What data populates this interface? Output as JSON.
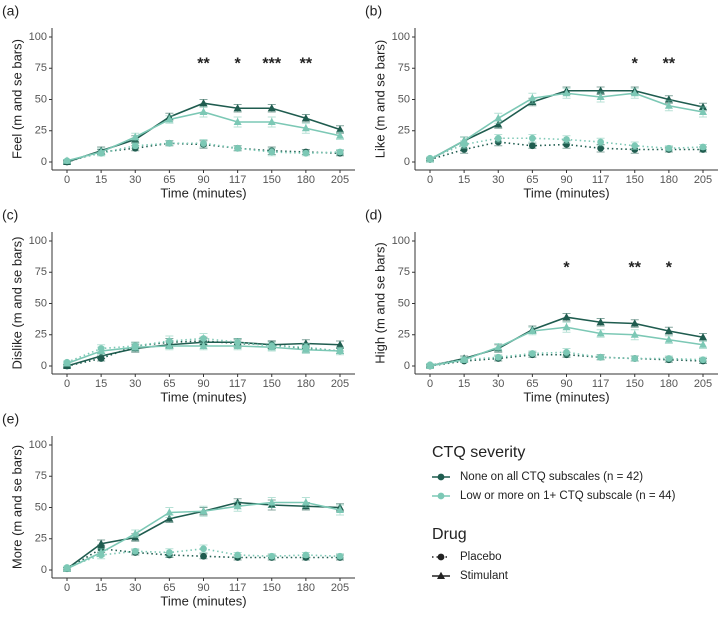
{
  "chart_data": [
    {
      "type": "line",
      "panel": "(a)",
      "ylabel": "Feel (m and se bars)",
      "xlabel": "Time (minutes)",
      "categories": [
        0,
        15,
        30,
        65,
        90,
        117,
        150,
        180,
        205
      ],
      "ylim": [
        0,
        100
      ],
      "yticks": [
        0,
        25,
        50,
        75,
        100
      ],
      "significance": [
        null,
        null,
        null,
        null,
        "**",
        "*",
        "***",
        "**",
        null
      ],
      "series": [
        [
          {
            "values": [
              0,
              8,
              11,
              15,
              14,
              11,
              9,
              8,
              7
            ],
            "errors": [
              1,
              2,
              2,
              2,
              3,
              2,
              3,
              2,
              2
            ]
          },
          {
            "values": [
              0,
              9,
              18,
              36,
              47,
              43,
              43,
              35,
              26
            ],
            "errors": [
              1,
              3,
              3,
              3,
              3,
              3,
              3,
              3,
              3
            ]
          }
        ],
        [
          {
            "values": [
              1,
              7,
              13,
              15,
              15,
              11,
              8,
              7,
              8
            ],
            "errors": [
              1,
              2,
              2,
              2,
              3,
              2,
              3,
              2,
              2
            ]
          },
          {
            "values": [
              1,
              8,
              20,
              34,
              40,
              32,
              32,
              27,
              21
            ],
            "errors": [
              1,
              3,
              3,
              3,
              4,
              4,
              4,
              4,
              3
            ]
          }
        ]
      ]
    },
    {
      "type": "line",
      "panel": "(b)",
      "ylabel": "Like (m and se bars)",
      "xlabel": "Time (minutes)",
      "categories": [
        0,
        15,
        30,
        65,
        90,
        117,
        150,
        180,
        205
      ],
      "ylim": [
        0,
        100
      ],
      "yticks": [
        0,
        25,
        50,
        75,
        100
      ],
      "significance": [
        null,
        null,
        null,
        null,
        null,
        null,
        "*",
        "**",
        null
      ],
      "series": [
        [
          {
            "values": [
              2,
              10,
              16,
              13,
              14,
              11,
              10,
              10,
              10
            ],
            "errors": [
              1,
              3,
              3,
              2,
              3,
              3,
              3,
              2,
              2
            ]
          },
          {
            "values": [
              2,
              17,
              30,
              48,
              57,
              57,
              57,
              50,
              44
            ],
            "errors": [
              1,
              3,
              3,
              3,
              3,
              3,
              3,
              3,
              3
            ]
          }
        ],
        [
          {
            "values": [
              3,
              14,
              19,
              19,
              18,
              16,
              13,
              11,
              12
            ],
            "errors": [
              1,
              3,
              3,
              3,
              3,
              3,
              3,
              2,
              2
            ]
          },
          {
            "values": [
              2,
              17,
              35,
              51,
              55,
              52,
              55,
              45,
              40
            ],
            "errors": [
              1,
              3,
              4,
              4,
              4,
              4,
              4,
              4,
              4
            ]
          }
        ]
      ]
    },
    {
      "type": "line",
      "panel": "(c)",
      "ylabel": "Dislike (m and se bars)",
      "xlabel": "Time (minutes)",
      "categories": [
        0,
        15,
        30,
        65,
        90,
        117,
        150,
        180,
        205
      ],
      "ylim": [
        0,
        100
      ],
      "yticks": [
        0,
        25,
        50,
        75,
        100
      ],
      "series": [
        [
          {
            "values": [
              0,
              6,
              16,
              19,
              20,
              18,
              17,
              14,
              12
            ],
            "errors": [
              1,
              2,
              3,
              3,
              3,
              3,
              3,
              3,
              2
            ]
          },
          {
            "values": [
              0,
              8,
              14,
              17,
              19,
              19,
              17,
              18,
              17
            ],
            "errors": [
              1,
              2,
              3,
              3,
              3,
              3,
              3,
              3,
              3
            ]
          }
        ],
        [
          {
            "values": [
              3,
              14,
              16,
              20,
              22,
              19,
              16,
              15,
              12
            ],
            "errors": [
              1,
              3,
              3,
              4,
              4,
              3,
              3,
              3,
              2
            ]
          },
          {
            "values": [
              2,
              12,
              15,
              16,
              16,
              16,
              15,
              13,
              12
            ],
            "errors": [
              1,
              3,
              3,
              3,
              3,
              3,
              3,
              3,
              3
            ]
          }
        ]
      ]
    },
    {
      "type": "line",
      "panel": "(d)",
      "ylabel": "High (m and se bars)",
      "xlabel": "Time (minutes)",
      "categories": [
        0,
        15,
        30,
        65,
        90,
        117,
        150,
        180,
        205
      ],
      "ylim": [
        0,
        100
      ],
      "yticks": [
        0,
        25,
        50,
        75,
        100
      ],
      "significance": [
        null,
        null,
        null,
        null,
        "*",
        null,
        "**",
        "*",
        null
      ],
      "series": [
        [
          {
            "values": [
              0,
              4,
              6,
              9,
              9,
              7,
              6,
              5,
              4
            ],
            "errors": [
              1,
              1,
              2,
              2,
              2,
              2,
              2,
              2,
              2
            ]
          },
          {
            "values": [
              0,
              6,
              14,
              29,
              39,
              35,
              34,
              28,
              23
            ],
            "errors": [
              1,
              2,
              3,
              3,
              3,
              3,
              3,
              3,
              3
            ]
          }
        ],
        [
          {
            "values": [
              1,
              5,
              7,
              10,
              11,
              7,
              6,
              6,
              5
            ],
            "errors": [
              1,
              1,
              2,
              2,
              3,
              2,
              2,
              2,
              2
            ]
          },
          {
            "values": [
              0,
              5,
              15,
              28,
              31,
              26,
              25,
              21,
              17
            ],
            "errors": [
              1,
              2,
              3,
              3,
              4,
              3,
              4,
              3,
              3
            ]
          }
        ]
      ]
    },
    {
      "type": "line",
      "panel": "(e)",
      "ylabel": "More (m and se bars)",
      "xlabel": "Time (minutes)",
      "categories": [
        0,
        15,
        30,
        65,
        90,
        117,
        150,
        180,
        205
      ],
      "ylim": [
        0,
        100
      ],
      "yticks": [
        0,
        25,
        50,
        75,
        100
      ],
      "series": [
        [
          {
            "values": [
              1,
              17,
              14,
              12,
              11,
              10,
              10,
              10,
              10
            ],
            "errors": [
              1,
              3,
              2,
              2,
              2,
              2,
              2,
              2,
              2
            ]
          },
          {
            "values": [
              1,
              21,
              26,
              41,
              47,
              54,
              52,
              51,
              50
            ],
            "errors": [
              1,
              3,
              3,
              3,
              3,
              3,
              4,
              3,
              3
            ]
          }
        ],
        [
          {
            "values": [
              2,
              12,
              15,
              14,
              17,
              12,
              11,
              12,
              11
            ],
            "errors": [
              1,
              3,
              2,
              3,
              3,
              2,
              2,
              2,
              2
            ]
          },
          {
            "values": [
              1,
              14,
              29,
              46,
              47,
              51,
              54,
              54,
              48
            ],
            "errors": [
              1,
              3,
              3,
              4,
              4,
              4,
              4,
              4,
              4
            ]
          }
        ]
      ]
    }
  ],
  "legend": {
    "ctq": {
      "title": "CTQ severity",
      "items": [
        {
          "name": "None on all CTQ subscales (n = 42)",
          "color": "#1f5c4f"
        },
        {
          "name": "Low or more on 1+ CTQ subscale (n = 44)",
          "color": "#7cc8b5"
        }
      ]
    },
    "drug": {
      "title": "Drug",
      "items": [
        {
          "name": "Placebo",
          "dash": "dotted",
          "marker": "circle"
        },
        {
          "name": "Stimulant",
          "dash": "solid",
          "marker": "triangle"
        }
      ]
    }
  }
}
